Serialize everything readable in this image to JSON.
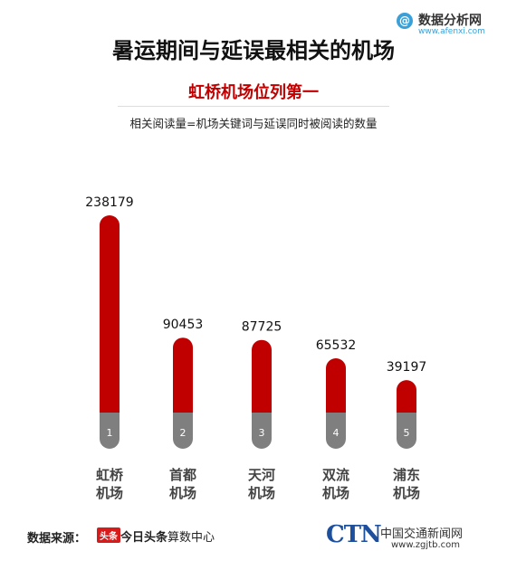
{
  "header": {
    "brand": "数据分析网",
    "brand_domain": "www.afenxi.com",
    "brand_mark": "@"
  },
  "title": "暑运期间与延误最相关的机场",
  "subtitle": "虹桥机场位列第一",
  "note": "相关阅读量=机场关键词与延误同时被阅读的数量",
  "footer": {
    "source_label": "数据来源：",
    "source_logo": "头条",
    "source_name": "今日头条",
    "source_suffix": "算数中心",
    "ctn_logo": "CTN",
    "ctn_name": "中国交通新闻网",
    "ctn_url": "www.zgjtb.com"
  },
  "chart_data": {
    "type": "bar",
    "categories": [
      "虹桥\n机场",
      "首都\n机场",
      "天河\n机场",
      "双流\n机场",
      "浦东\n机场"
    ],
    "ranks": [
      "1",
      "2",
      "3",
      "4",
      "5"
    ],
    "values": [
      238179,
      90453,
      87725,
      65532,
      39197
    ],
    "title": "暑运期间与延误最相关的机场",
    "xlabel": "",
    "ylabel": "",
    "grid": false,
    "legend": "none",
    "colors": {
      "bar": "#c00000",
      "base": "#7f7f7f",
      "label": "#111111",
      "category": "#444444"
    }
  }
}
